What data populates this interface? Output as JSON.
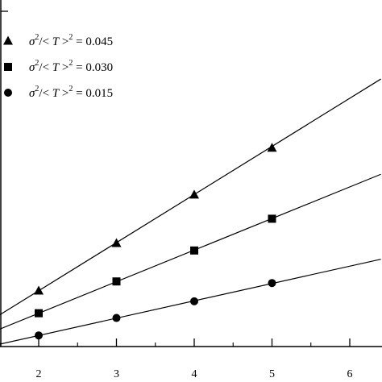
{
  "chart_data": {
    "type": "scatter",
    "title": "",
    "xlabel": "",
    "ylabel": "",
    "xlim": [
      1.5,
      6.4
    ],
    "ylim": [
      0,
      4.4
    ],
    "grid": false,
    "legend_position": "top-left",
    "x_ticks": [
      "2",
      "3",
      "4",
      "5",
      "6"
    ],
    "series": [
      {
        "name_parts": [
          "σ",
          "2",
          "/< ",
          "T",
          " >",
          "2",
          " = 0.045"
        ],
        "marker": "triangle",
        "points": [
          [
            2,
            0.7
          ],
          [
            3,
            1.3
          ],
          [
            4,
            1.91
          ],
          [
            5,
            2.5
          ]
        ],
        "fit_line": [
          [
            1.5,
            0.4
          ],
          [
            6.4,
            3.37
          ]
        ]
      },
      {
        "name_parts": [
          "σ",
          "2",
          "/< ",
          "T",
          " >",
          "2",
          " = 0.030"
        ],
        "marker": "square",
        "points": [
          [
            2,
            0.42
          ],
          [
            3,
            0.82
          ],
          [
            4,
            1.21
          ],
          [
            5,
            1.61
          ]
        ],
        "fit_line": [
          [
            1.5,
            0.22
          ],
          [
            6.4,
            2.17
          ]
        ]
      },
      {
        "name_parts": [
          "σ",
          "2",
          "/< ",
          "T",
          " >",
          "2",
          " = 0.015"
        ],
        "marker": "circle",
        "points": [
          [
            2,
            0.14
          ],
          [
            3,
            0.36
          ],
          [
            4,
            0.57
          ],
          [
            5,
            0.8
          ]
        ],
        "fit_line": [
          [
            1.5,
            0.03
          ],
          [
            6.4,
            1.1
          ]
        ]
      }
    ]
  }
}
